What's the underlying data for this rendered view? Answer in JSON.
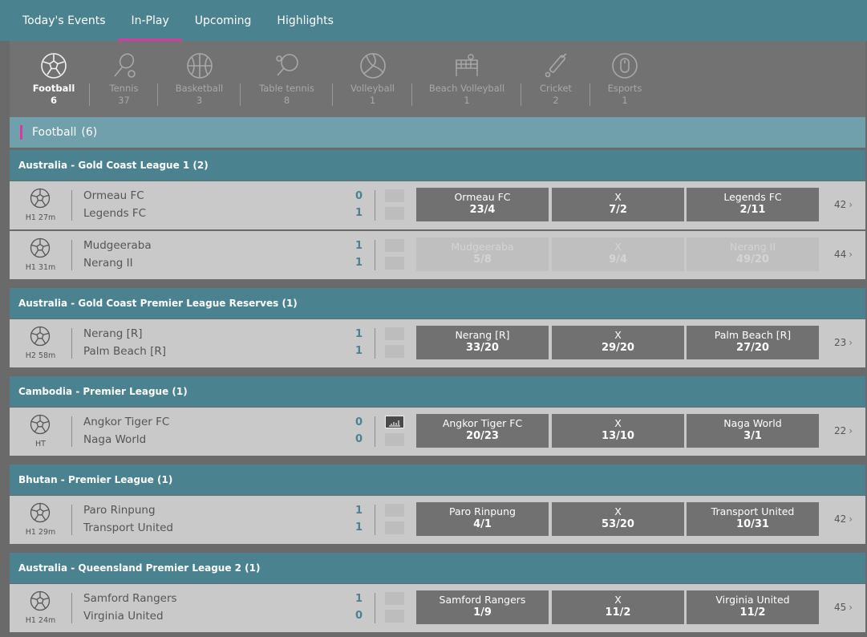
{
  "nav": {
    "tabs": [
      {
        "label": "Today's Events"
      },
      {
        "label": "In-Play"
      },
      {
        "label": "Upcoming"
      },
      {
        "label": "Highlights"
      }
    ],
    "active": "In-Play"
  },
  "sports": [
    {
      "name": "Football",
      "count": "6",
      "icon": "football-icon",
      "active": true
    },
    {
      "name": "Tennis",
      "count": "37",
      "icon": "tennis-icon"
    },
    {
      "name": "Basketball",
      "count": "3",
      "icon": "basketball-icon"
    },
    {
      "name": "Table tennis",
      "count": "8",
      "icon": "table-tennis-icon"
    },
    {
      "name": "Volleyball",
      "count": "1",
      "icon": "volleyball-icon"
    },
    {
      "name": "Beach Volleyball",
      "count": "1",
      "icon": "beach-volleyball-icon"
    },
    {
      "name": "Cricket",
      "count": "2",
      "icon": "cricket-icon"
    },
    {
      "name": "Esports",
      "count": "1",
      "icon": "esports-icon"
    }
  ],
  "section": {
    "title": "Football",
    "count": "(6)"
  },
  "leagues": [
    {
      "name": "Australia - Gold Coast League 1 (2)"
    },
    {
      "name": "Australia - Gold Coast Premier League Reserves (1)"
    },
    {
      "name": "Cambodia - Premier League (1)"
    },
    {
      "name": "Bhutan - Premier League (1)"
    },
    {
      "name": "Australia - Queensland Premier League 2 (1)"
    }
  ],
  "matches": [
    {
      "time": "H1 27m",
      "team1": "Ormeau FC",
      "team2": "Legends FC",
      "score1": "0",
      "score2": "1",
      "odds": [
        {
          "label": "Ormeau FC",
          "value": "23/4"
        },
        {
          "label": "X",
          "value": "7/2"
        },
        {
          "label": "Legends FC",
          "value": "2/11"
        }
      ],
      "more": "42",
      "suspended": false
    },
    {
      "time": "H1 31m",
      "team1": "Mudgeeraba",
      "team2": "Nerang II",
      "score1": "1",
      "score2": "1",
      "odds": [
        {
          "label": "Mudgeeraba",
          "value": "5/8"
        },
        {
          "label": "X",
          "value": "9/4"
        },
        {
          "label": "Nerang II",
          "value": "49/20"
        }
      ],
      "more": "44",
      "suspended": true
    },
    {
      "time": "H2 58m",
      "team1": "Nerang [R]",
      "team2": "Palm Beach [R]",
      "score1": "1",
      "score2": "1",
      "odds": [
        {
          "label": "Nerang [R]",
          "value": "33/20"
        },
        {
          "label": "X",
          "value": "29/20"
        },
        {
          "label": "Palm Beach [R]",
          "value": "27/20"
        }
      ],
      "more": "23",
      "suspended": false
    },
    {
      "time": "HT",
      "team1": "Angkor Tiger FC",
      "team2": "Naga World",
      "score1": "0",
      "score2": "0",
      "odds": [
        {
          "label": "Angkor Tiger FC",
          "value": "20/23"
        },
        {
          "label": "X",
          "value": "13/10"
        },
        {
          "label": "Naga World",
          "value": "3/1"
        }
      ],
      "more": "22",
      "suspended": false,
      "stats": true
    },
    {
      "time": "H1 29m",
      "team1": "Paro Rinpung",
      "team2": "Transport United",
      "score1": "1",
      "score2": "1",
      "odds": [
        {
          "label": "Paro Rinpung",
          "value": "4/1"
        },
        {
          "label": "X",
          "value": "53/20"
        },
        {
          "label": "Transport United",
          "value": "10/31"
        }
      ],
      "more": "42",
      "suspended": false
    },
    {
      "time": "H1 24m",
      "team1": "Samford Rangers",
      "team2": "Virginia United",
      "score1": "1",
      "score2": "0",
      "odds": [
        {
          "label": "Samford Rangers",
          "value": "1/9"
        },
        {
          "label": "X",
          "value": "11/2"
        },
        {
          "label": "Virginia United",
          "value": "11/2"
        }
      ],
      "more": "45",
      "suspended": false
    }
  ],
  "colors": {
    "accent": "#d63ba4",
    "header": "#4a8290",
    "section": "#6fa0ab"
  }
}
